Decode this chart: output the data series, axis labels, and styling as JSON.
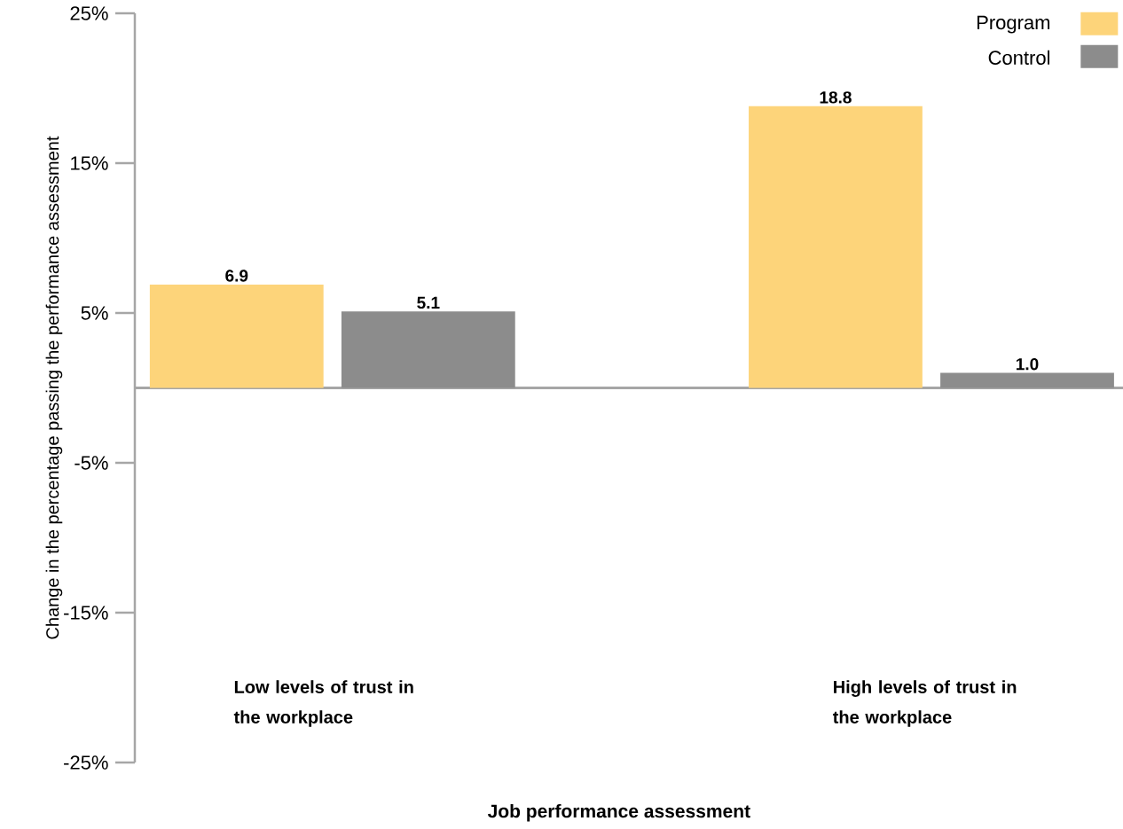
{
  "chart_data": {
    "type": "bar",
    "xlabel": "Job performance assessment",
    "ylabel": "Change in the percentage passing the performance assessment",
    "categories": [
      "Low levels of trust in the workplace",
      "High levels of trust in the workplace"
    ],
    "series": [
      {
        "name": "Program",
        "color": "#fdd47a",
        "values": [
          6.9,
          18.8
        ],
        "value_labels": [
          "6.9",
          "18.8"
        ]
      },
      {
        "name": "Control",
        "color": "#8c8c8c",
        "values": [
          5.1,
          1.0
        ],
        "value_labels": [
          "5.1",
          "1.0"
        ]
      }
    ],
    "ylim": [
      -25,
      25
    ],
    "yticks": [
      {
        "value": 25,
        "label": "25%"
      },
      {
        "value": 15,
        "label": "15%"
      },
      {
        "value": 5,
        "label": "5%"
      },
      {
        "value": -5,
        "label": "-5%"
      },
      {
        "value": -15,
        "label": "-15%"
      },
      {
        "value": -25,
        "label": "-25%"
      }
    ],
    "legend": "top right",
    "grid": false
  }
}
